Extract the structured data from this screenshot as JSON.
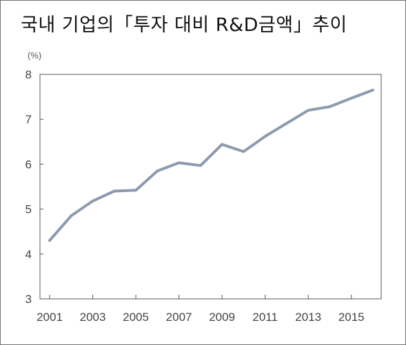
{
  "chart_data": {
    "type": "line",
    "title": "국내 기업의「투자 대비 R&D금액」추이",
    "unit": "(%)",
    "xlabel": "",
    "ylabel": "",
    "ylim": [
      3,
      8
    ],
    "yticks": [
      3,
      4,
      5,
      6,
      7,
      8
    ],
    "xlim": [
      2001,
      2016
    ],
    "xticks": [
      2001,
      2003,
      2005,
      2007,
      2009,
      2011,
      2013,
      2015
    ],
    "grid": false,
    "line_color": "#8d9aae",
    "series": [
      {
        "name": "",
        "x": [
          2001,
          2002,
          2003,
          2004,
          2005,
          2006,
          2007,
          2008,
          2009,
          2010,
          2011,
          2012,
          2013,
          2014,
          2015,
          2016
        ],
        "values": [
          4.3,
          4.85,
          5.18,
          5.4,
          5.42,
          5.85,
          6.03,
          5.97,
          6.44,
          6.28,
          6.62,
          6.91,
          7.2,
          7.28,
          7.47,
          7.65
        ]
      }
    ]
  }
}
